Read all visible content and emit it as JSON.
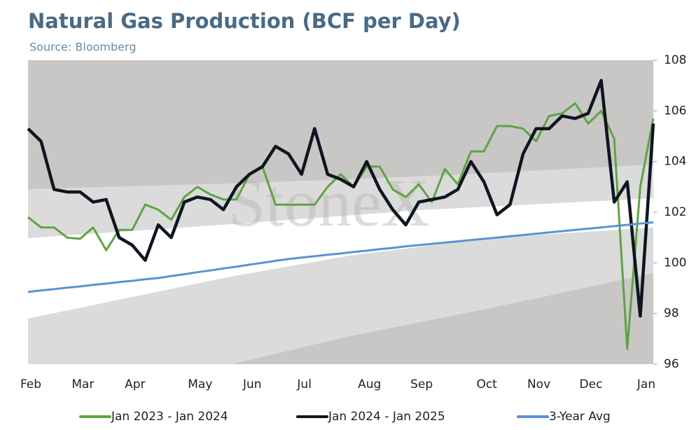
{
  "chart_data": {
    "type": "line",
    "title": "Natural Gas Production (BCF per Day)",
    "subtitle": "Source: Bloomberg",
    "watermark": "StoneX",
    "categories": [
      "Feb",
      null,
      null,
      null,
      "Mar",
      null,
      null,
      null,
      "Apr",
      null,
      null,
      null,
      null,
      "May",
      null,
      null,
      null,
      "Jun",
      null,
      null,
      null,
      "Jul",
      null,
      null,
      null,
      null,
      "Aug",
      null,
      null,
      null,
      "Sep",
      null,
      null,
      null,
      null,
      "Oct",
      null,
      null,
      null,
      "Nov",
      null,
      null,
      null,
      "Dec",
      null,
      null,
      null,
      null,
      "Jan"
    ],
    "series": [
      {
        "name": "Jan 2023 - Jan 2024",
        "color": "#5fa343",
        "width": 3,
        "values": [
          101.8,
          101.4,
          101.4,
          101.0,
          100.95,
          101.4,
          100.5,
          101.3,
          101.3,
          102.3,
          102.1,
          101.7,
          102.6,
          103.0,
          102.7,
          102.5,
          102.5,
          103.5,
          103.8,
          102.3,
          102.3,
          102.3,
          102.3,
          103.0,
          103.5,
          103.0,
          103.8,
          103.8,
          102.9,
          102.6,
          103.1,
          102.4,
          103.7,
          103.1,
          104.4,
          104.4,
          105.4,
          105.4,
          105.3,
          104.8,
          105.8,
          105.9,
          106.3,
          105.5,
          106.0,
          104.9,
          96.6,
          103.0,
          105.7
        ]
      },
      {
        "name": "Jan 2024 - Jan 2025",
        "color": "#0d1620",
        "width": 4.5,
        "values": [
          105.3,
          104.8,
          102.9,
          102.8,
          102.8,
          102.4,
          102.5,
          101.0,
          100.7,
          100.1,
          101.5,
          101.0,
          102.4,
          102.6,
          102.5,
          102.1,
          103.0,
          103.5,
          103.8,
          104.6,
          104.3,
          103.5,
          105.3,
          103.5,
          103.3,
          103.0,
          104.0,
          102.9,
          102.1,
          101.5,
          102.4,
          102.5,
          102.6,
          102.9,
          104.0,
          103.2,
          101.9,
          102.3,
          104.3,
          105.3,
          105.3,
          105.8,
          105.7,
          105.9,
          107.2,
          102.4,
          103.2,
          97.9,
          105.5
        ]
      },
      {
        "name": "3-Year Avg",
        "color": "#5b93d0",
        "width": 3,
        "values": [
          98.85,
          98.91,
          98.96,
          99.02,
          99.07,
          99.13,
          99.18,
          99.24,
          99.29,
          99.35,
          99.4,
          99.48,
          99.55,
          99.63,
          99.7,
          99.78,
          99.85,
          99.93,
          100.0,
          100.08,
          100.15,
          100.21,
          100.26,
          100.32,
          100.37,
          100.43,
          100.48,
          100.54,
          100.59,
          100.65,
          100.7,
          100.75,
          100.8,
          100.85,
          100.9,
          100.95,
          101.0,
          101.05,
          101.1,
          101.15,
          101.2,
          101.25,
          101.3,
          101.35,
          101.4,
          101.45,
          101.5,
          101.55,
          101.6
        ]
      }
    ],
    "ylim": [
      96,
      108
    ],
    "yticks": [
      96,
      98,
      100,
      102,
      104,
      106,
      108
    ],
    "y_axis_side": "right",
    "legend": "bottom"
  }
}
